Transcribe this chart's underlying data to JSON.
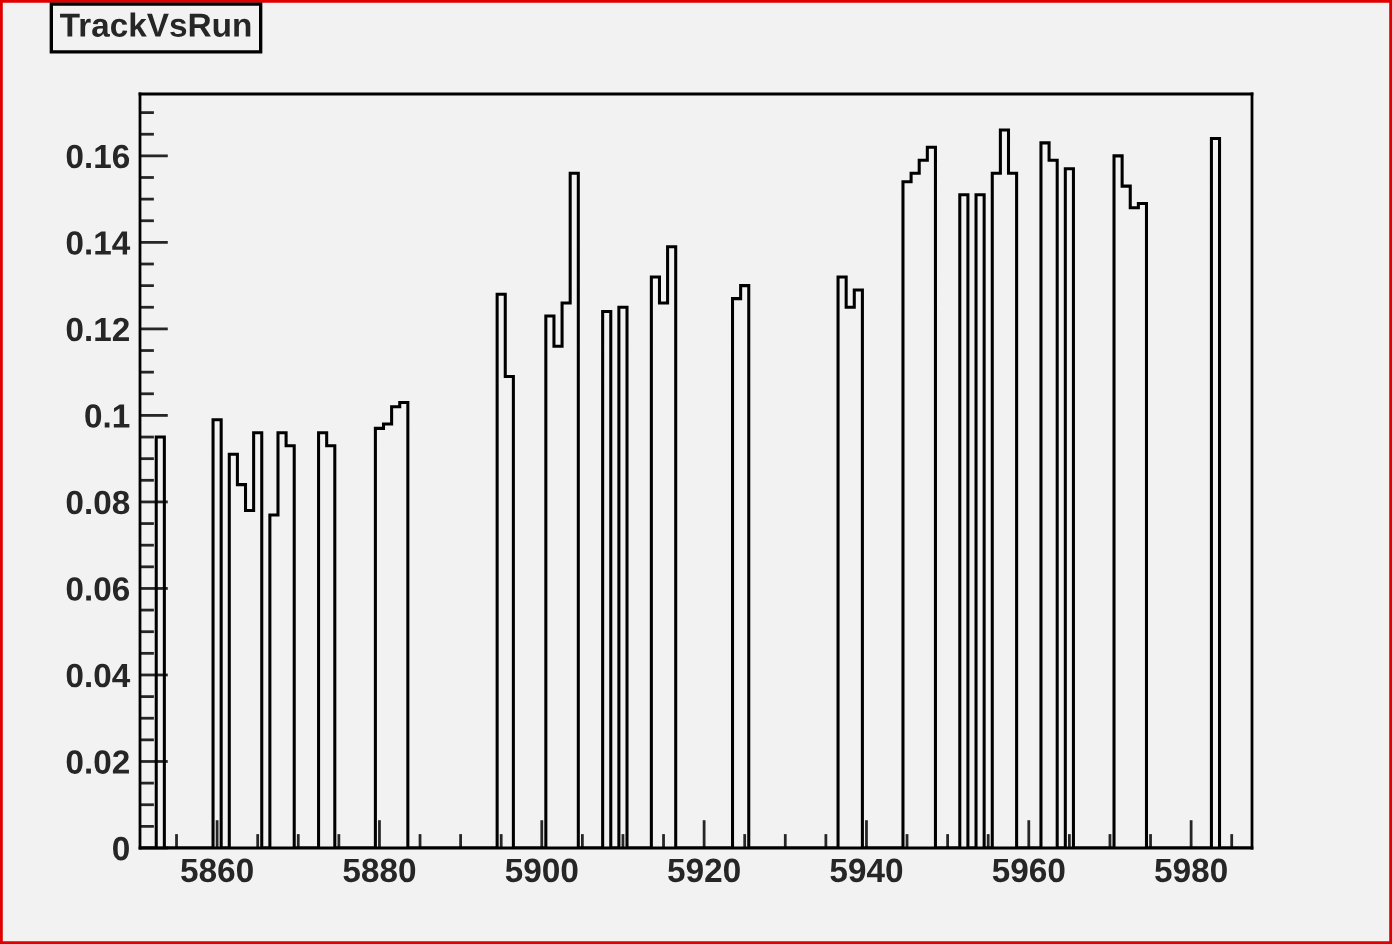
{
  "chart_data": {
    "type": "histogram",
    "title": "TrackVsRun",
    "color": "#000000",
    "bins": [
      5850.5,
      5851.5,
      5852.5,
      5853.5,
      5854.5,
      5855.5,
      5856.5,
      5857.5,
      5858.5,
      5859.5,
      5860.5,
      5861.5,
      5862.5,
      5863.5,
      5864.5,
      5865.5,
      5866.5,
      5867.5,
      5868.5,
      5869.5,
      5870.5,
      5871.5,
      5872.5,
      5873.5,
      5874.5,
      5875.5,
      5876.5,
      5877.5,
      5878.5,
      5879.5,
      5880.5,
      5881.5,
      5882.5,
      5883.5,
      5884.5,
      5885.5,
      5886.5,
      5887.5,
      5888.5,
      5889.5,
      5890.5,
      5891.5,
      5892.5,
      5893.5,
      5894.5,
      5895.5,
      5896.5,
      5897.5,
      5898.5,
      5899.5,
      5900.5,
      5901.5,
      5902.5,
      5903.5,
      5904.5,
      5905.5,
      5906.5,
      5907.5,
      5908.5,
      5909.5,
      5910.5,
      5911.5,
      5912.5,
      5913.5,
      5914.5,
      5915.5,
      5916.5,
      5917.5,
      5918.5,
      5919.5,
      5920.5,
      5921.5,
      5922.5,
      5923.5,
      5924.5,
      5925.5,
      5926.5,
      5927.5,
      5928.5,
      5929.5,
      5930.5,
      5931.5,
      5932.5,
      5933.5,
      5934.5,
      5935.5,
      5936.5,
      5937.5,
      5938.5,
      5939.5,
      5940.5,
      5941.5,
      5942.5,
      5943.5,
      5944.5,
      5945.5,
      5946.5,
      5947.5,
      5948.5,
      5949.5,
      5950.5,
      5951.5,
      5952.5,
      5953.5,
      5954.5,
      5955.5,
      5956.5,
      5957.5,
      5958.5,
      5959.5,
      5960.5,
      5961.5,
      5962.5,
      5963.5,
      5964.5,
      5965.5,
      5966.5,
      5967.5,
      5968.5,
      5969.5,
      5970.5,
      5971.5,
      5972.5,
      5973.5,
      5974.5,
      5975.5,
      5976.5,
      5977.5,
      5978.5,
      5979.5,
      5980.5,
      5981.5,
      5982.5,
      5983.5,
      5984.5,
      5985.5,
      5986.5,
      5987.5
    ],
    "values": [
      0,
      0,
      0.095,
      0,
      0,
      0,
      0,
      0,
      0,
      0.099,
      0,
      0.091,
      0.084,
      0.078,
      0.096,
      0,
      0.077,
      0.096,
      0.093,
      0,
      0,
      0,
      0.096,
      0.093,
      0,
      0,
      0,
      0,
      0,
      0.097,
      0.098,
      0.102,
      0.103,
      0,
      0,
      0,
      0,
      0,
      0,
      0,
      0,
      0,
      0,
      0,
      0.128,
      0.109,
      0,
      0,
      0,
      0,
      0.123,
      0.116,
      0.126,
      0.156,
      0,
      0,
      0,
      0.124,
      0,
      0.125,
      0,
      0,
      0,
      0.132,
      0.126,
      0.139,
      0,
      0,
      0,
      0,
      0,
      0,
      0,
      0.127,
      0.13,
      0,
      0,
      0,
      0,
      0,
      0,
      0,
      0,
      0,
      0,
      0,
      0.132,
      0.125,
      0.129,
      0,
      0,
      0,
      0,
      0,
      0.154,
      0.156,
      0.159,
      0.162,
      0,
      0,
      0,
      0.151,
      0,
      0.151,
      0,
      0.156,
      0.166,
      0.156,
      0,
      0,
      0,
      0.163,
      0.159,
      0,
      0.157,
      0,
      0,
      0,
      0,
      0,
      0.16,
      0.153,
      0.148,
      0.149,
      0,
      0,
      0,
      0,
      0,
      0,
      0,
      0,
      0.164,
      0,
      0,
      0,
      0
    ],
    "xlim": [
      5850.5,
      5987.5
    ],
    "ylim": [
      0,
      0.1743
    ],
    "xticks": [
      5860,
      5880,
      5900,
      5920,
      5940,
      5960,
      5980
    ],
    "yticks": [
      0,
      0.02,
      0.04,
      0.06,
      0.08,
      0.1,
      0.12,
      0.14,
      0.16
    ]
  }
}
